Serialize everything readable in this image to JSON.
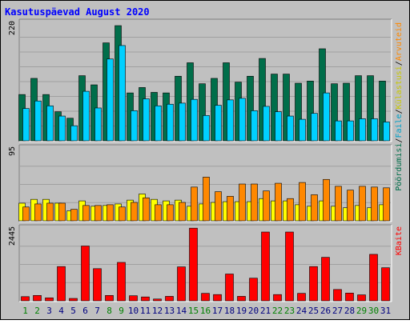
{
  "chart_data": {
    "type": "bar",
    "title": "Kasutuspäevad August 2020",
    "categories": [
      "1",
      "2",
      "3",
      "4",
      "5",
      "6",
      "7",
      "8",
      "9",
      "10",
      "11",
      "12",
      "13",
      "14",
      "15",
      "16",
      "17",
      "18",
      "19",
      "20",
      "21",
      "22",
      "23",
      "24",
      "25",
      "26",
      "27",
      "28",
      "29",
      "30",
      "31"
    ],
    "weekend_days": [
      "1",
      "2",
      "8",
      "9",
      "15",
      "16",
      "22",
      "23",
      "29",
      "30"
    ],
    "grid": true,
    "panels": [
      {
        "ymax_label": "220",
        "ymax": 220,
        "series": [
          {
            "name": "Pöördumisi",
            "color": "#006e4a",
            "values": [
              86,
              116,
              86,
              54,
              42,
              121,
              104,
              182,
              214,
              89,
              99,
              90,
              89,
              120,
              145,
              106,
              116,
              145,
              109,
              120,
              153,
              124,
              124,
              107,
              111,
              171,
              106,
              107,
              121,
              121,
              111
            ]
          },
          {
            "name": "Faile",
            "color": "#00d0ff",
            "values": [
              60,
              74,
              65,
              46,
              28,
              92,
              61,
              152,
              177,
              56,
              78,
              65,
              68,
              70,
              77,
              47,
              66,
              76,
              79,
              56,
              64,
              54,
              46,
              40,
              51,
              89,
              37,
              37,
              41,
              41,
              35
            ]
          }
        ]
      },
      {
        "ymax_label": "95",
        "ymax": 95,
        "series": [
          {
            "name": "Külastusi",
            "color": "#ffff00",
            "values": [
              23,
              28,
              28,
              23,
              13,
              26,
              19,
              20,
              22,
              27,
              35,
              28,
              26,
              27,
              19,
              22,
              24,
              25,
              25,
              25,
              29,
              26,
              26,
              21,
              19,
              26,
              19,
              17,
              20,
              17,
              21
            ]
          },
          {
            "name": "Arvuteid",
            "color": "#ff8800",
            "values": [
              18,
              22,
              23,
              23,
              15,
              20,
              20,
              21,
              18,
              24,
              30,
              21,
              21,
              24,
              44,
              57,
              38,
              32,
              48,
              48,
              39,
              49,
              29,
              50,
              34,
              54,
              45,
              40,
              45,
              44,
              43
            ]
          }
        ]
      },
      {
        "ymax_label": "2445",
        "ymax": 2445,
        "series": [
          {
            "name": "KBaite",
            "color": "#ff0000",
            "values": [
              140,
              180,
              100,
              1150,
              80,
              1840,
              1080,
              180,
              1290,
              170,
              130,
              60,
              150,
              1140,
              2440,
              250,
              210,
              900,
              150,
              760,
              2310,
              210,
              2310,
              250,
              1150,
              1460,
              380,
              260,
              200,
              1560,
              1110
            ]
          }
        ]
      }
    ],
    "legend_right": {
      "top": [
        {
          "text": "Pöördumisi",
          "color": "#006e4a"
        },
        {
          "text": "Faile",
          "color": "#00a0c8"
        },
        {
          "text": "Külastusi",
          "color": "#c8c800"
        },
        {
          "text": "Arvuteid",
          "color": "#ff8800"
        }
      ],
      "bottom": [
        {
          "text": "KBaite",
          "color": "#ff0000"
        }
      ],
      "separator": "/"
    }
  }
}
